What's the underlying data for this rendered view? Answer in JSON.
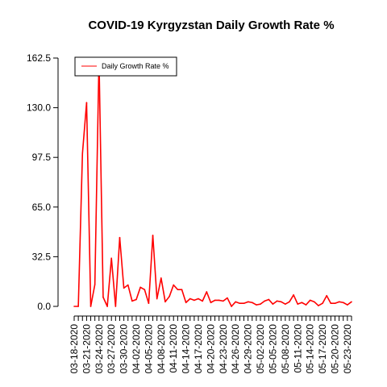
{
  "chart_data": {
    "type": "line",
    "title": "COVID-19 Kyrgyzstan Daily Growth Rate %",
    "xlabel": "",
    "ylabel": "",
    "ylim": [
      0,
      162.5
    ],
    "yticks": [
      "0.0",
      "32.5",
      "65.0",
      "97.5",
      "130.0",
      "162.5"
    ],
    "x_tick_labels": [
      "03-18-2020",
      "03-21-2020",
      "03-24-2020",
      "03-27-2020",
      "03-30-2020",
      "04-02-2020",
      "04-05-2020",
      "04-08-2020",
      "04-11-2020",
      "04-14-2020",
      "04-17-2020",
      "04-20-2020",
      "04-23-2020",
      "04-26-2020",
      "04-29-2020",
      "05-02-2020",
      "05-05-2020",
      "05-08-2020",
      "05-11-2020",
      "05-14-2020",
      "05-17-2020",
      "05-20-2020",
      "05-23-2020"
    ],
    "x": [
      "03-18-2020",
      "03-19-2020",
      "03-20-2020",
      "03-21-2020",
      "03-22-2020",
      "03-23-2020",
      "03-24-2020",
      "03-25-2020",
      "03-26-2020",
      "03-27-2020",
      "03-28-2020",
      "03-29-2020",
      "03-30-2020",
      "03-31-2020",
      "04-01-2020",
      "04-02-2020",
      "04-03-2020",
      "04-04-2020",
      "04-05-2020",
      "04-06-2020",
      "04-07-2020",
      "04-08-2020",
      "04-09-2020",
      "04-10-2020",
      "04-11-2020",
      "04-12-2020",
      "04-13-2020",
      "04-14-2020",
      "04-15-2020",
      "04-16-2020",
      "04-17-2020",
      "04-18-2020",
      "04-19-2020",
      "04-20-2020",
      "04-21-2020",
      "04-22-2020",
      "04-23-2020",
      "04-24-2020",
      "04-25-2020",
      "04-26-2020",
      "04-27-2020",
      "04-28-2020",
      "04-29-2020",
      "04-30-2020",
      "05-01-2020",
      "05-02-2020",
      "05-03-2020",
      "05-04-2020",
      "05-05-2020",
      "05-06-2020",
      "05-07-2020",
      "05-08-2020",
      "05-09-2020",
      "05-10-2020",
      "05-11-2020",
      "05-12-2020",
      "05-13-2020",
      "05-14-2020",
      "05-15-2020",
      "05-16-2020",
      "05-17-2020",
      "05-18-2020",
      "05-19-2020",
      "05-20-2020",
      "05-21-2020",
      "05-22-2020",
      "05-23-2020",
      "05-24-2020"
    ],
    "series": [
      {
        "name": "Daily Growth Rate %",
        "color": "#ff0000",
        "values": [
          0.0,
          0.0,
          100.0,
          133.3,
          0.0,
          14.3,
          162.5,
          6.0,
          0.0,
          31.5,
          0.0,
          45.0,
          12.0,
          14.0,
          3.5,
          4.5,
          12.5,
          11.0,
          2.0,
          46.5,
          5.0,
          18.5,
          3.0,
          6.5,
          14.0,
          11.0,
          11.0,
          2.5,
          5.0,
          4.0,
          5.0,
          3.5,
          9.5,
          2.5,
          4.0,
          4.0,
          3.5,
          5.5,
          0.0,
          3.0,
          2.0,
          2.0,
          3.0,
          2.5,
          1.0,
          1.5,
          3.5,
          4.5,
          1.5,
          3.5,
          3.0,
          1.5,
          3.0,
          7.5,
          1.5,
          2.5,
          1.0,
          4.0,
          3.0,
          0.5,
          2.0,
          7.0,
          2.0,
          2.0,
          3.0,
          2.5,
          1.0,
          3.0
        ]
      }
    ],
    "legend_position": "top-left",
    "grid": false
  }
}
